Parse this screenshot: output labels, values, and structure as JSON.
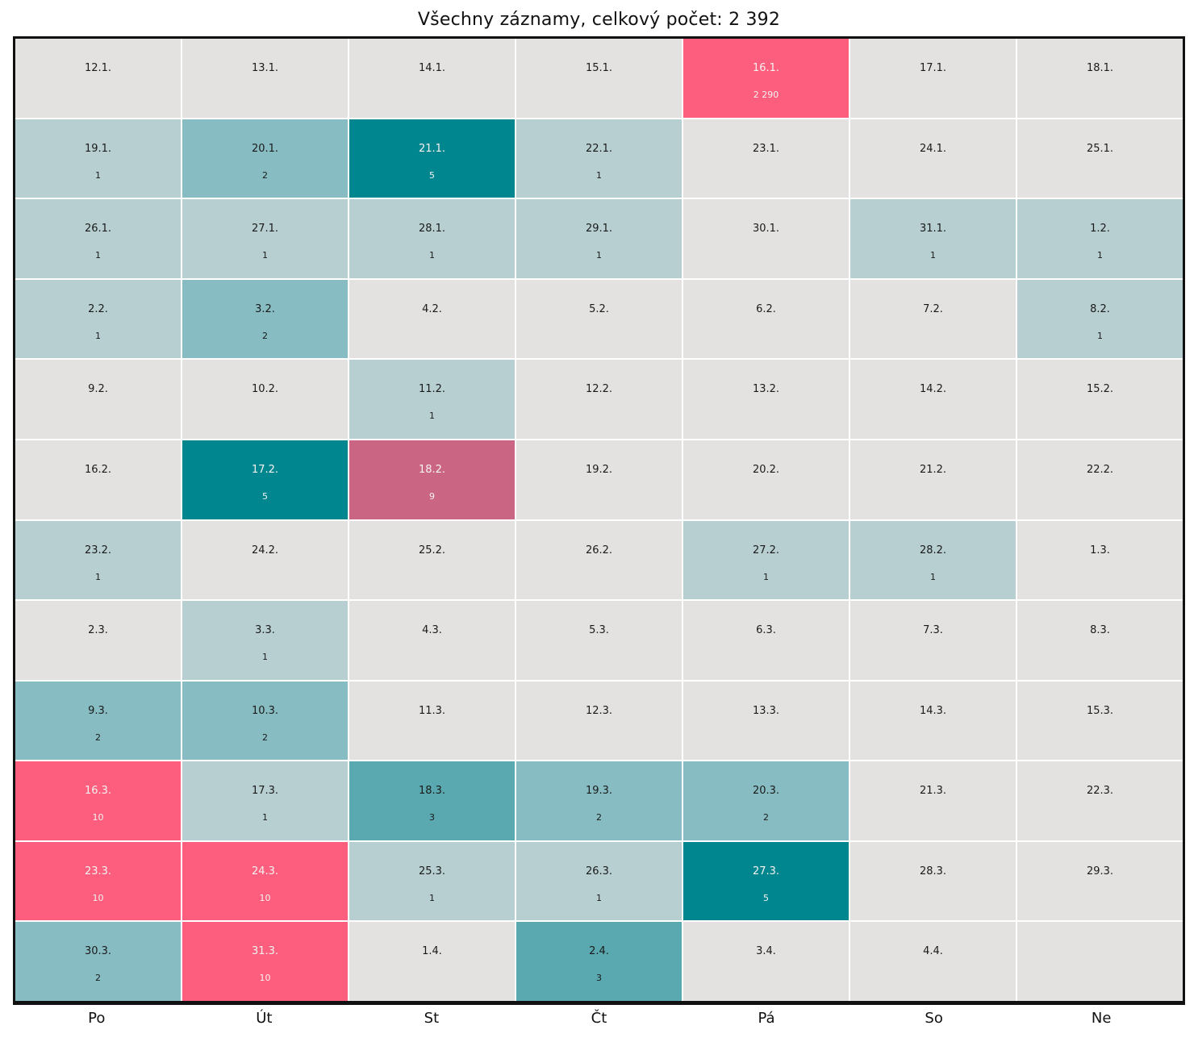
{
  "chart_data": {
    "type": "heatmap",
    "title": "Všechny záznamy, celkový počet: 2 392",
    "total_count_label": "2 392",
    "total_count": 2392,
    "x_labels": [
      "Po",
      "Út",
      "St",
      "Čt",
      "Pá",
      "So",
      "Ne"
    ],
    "layout": {
      "grid_line_color": "#ffffff",
      "border_color": "#111111",
      "legend": "none"
    },
    "color_scale": {
      "empty": "#e3e2e0",
      "1": "#b7cfd1",
      "2": "#87bdc2",
      "3": "#5aa9b0",
      "5": "#00868f",
      "9": "#cb6584",
      "10": "#fd5e7d",
      "2290": "#fd5e7d"
    },
    "light_text_counts": [
      5,
      9,
      10,
      2290
    ],
    "weeks": [
      [
        {
          "date": "12.1.",
          "count": null
        },
        {
          "date": "13.1.",
          "count": null
        },
        {
          "date": "14.1.",
          "count": null
        },
        {
          "date": "15.1.",
          "count": null
        },
        {
          "date": "16.1.",
          "count": 2290,
          "label": "2 290"
        },
        {
          "date": "17.1.",
          "count": null
        },
        {
          "date": "18.1.",
          "count": null
        }
      ],
      [
        {
          "date": "19.1.",
          "count": 1
        },
        {
          "date": "20.1.",
          "count": 2
        },
        {
          "date": "21.1.",
          "count": 5
        },
        {
          "date": "22.1.",
          "count": 1
        },
        {
          "date": "23.1.",
          "count": null
        },
        {
          "date": "24.1.",
          "count": null
        },
        {
          "date": "25.1.",
          "count": null
        }
      ],
      [
        {
          "date": "26.1.",
          "count": 1
        },
        {
          "date": "27.1.",
          "count": 1
        },
        {
          "date": "28.1.",
          "count": 1
        },
        {
          "date": "29.1.",
          "count": 1
        },
        {
          "date": "30.1.",
          "count": null
        },
        {
          "date": "31.1.",
          "count": 1
        },
        {
          "date": "1.2.",
          "count": 1
        }
      ],
      [
        {
          "date": "2.2.",
          "count": 1
        },
        {
          "date": "3.2.",
          "count": 2
        },
        {
          "date": "4.2.",
          "count": null
        },
        {
          "date": "5.2.",
          "count": null
        },
        {
          "date": "6.2.",
          "count": null
        },
        {
          "date": "7.2.",
          "count": null
        },
        {
          "date": "8.2.",
          "count": 1
        }
      ],
      [
        {
          "date": "9.2.",
          "count": null
        },
        {
          "date": "10.2.",
          "count": null
        },
        {
          "date": "11.2.",
          "count": 1
        },
        {
          "date": "12.2.",
          "count": null
        },
        {
          "date": "13.2.",
          "count": null
        },
        {
          "date": "14.2.",
          "count": null
        },
        {
          "date": "15.2.",
          "count": null
        }
      ],
      [
        {
          "date": "16.2.",
          "count": null
        },
        {
          "date": "17.2.",
          "count": 5
        },
        {
          "date": "18.2.",
          "count": 9
        },
        {
          "date": "19.2.",
          "count": null
        },
        {
          "date": "20.2.",
          "count": null
        },
        {
          "date": "21.2.",
          "count": null
        },
        {
          "date": "22.2.",
          "count": null
        }
      ],
      [
        {
          "date": "23.2.",
          "count": 1
        },
        {
          "date": "24.2.",
          "count": null
        },
        {
          "date": "25.2.",
          "count": null
        },
        {
          "date": "26.2.",
          "count": null
        },
        {
          "date": "27.2.",
          "count": 1
        },
        {
          "date": "28.2.",
          "count": 1
        },
        {
          "date": "1.3.",
          "count": null
        }
      ],
      [
        {
          "date": "2.3.",
          "count": null
        },
        {
          "date": "3.3.",
          "count": 1
        },
        {
          "date": "4.3.",
          "count": null
        },
        {
          "date": "5.3.",
          "count": null
        },
        {
          "date": "6.3.",
          "count": null
        },
        {
          "date": "7.3.",
          "count": null
        },
        {
          "date": "8.3.",
          "count": null
        }
      ],
      [
        {
          "date": "9.3.",
          "count": 2
        },
        {
          "date": "10.3.",
          "count": 2
        },
        {
          "date": "11.3.",
          "count": null
        },
        {
          "date": "12.3.",
          "count": null
        },
        {
          "date": "13.3.",
          "count": null
        },
        {
          "date": "14.3.",
          "count": null
        },
        {
          "date": "15.3.",
          "count": null
        }
      ],
      [
        {
          "date": "16.3.",
          "count": 10
        },
        {
          "date": "17.3.",
          "count": 1
        },
        {
          "date": "18.3.",
          "count": 3
        },
        {
          "date": "19.3.",
          "count": 2
        },
        {
          "date": "20.3.",
          "count": 2
        },
        {
          "date": "21.3.",
          "count": null
        },
        {
          "date": "22.3.",
          "count": null
        }
      ],
      [
        {
          "date": "23.3.",
          "count": 10
        },
        {
          "date": "24.3.",
          "count": 10
        },
        {
          "date": "25.3.",
          "count": 1
        },
        {
          "date": "26.3.",
          "count": 1
        },
        {
          "date": "27.3.",
          "count": 5
        },
        {
          "date": "28.3.",
          "count": null
        },
        {
          "date": "29.3.",
          "count": null
        }
      ],
      [
        {
          "date": "30.3.",
          "count": 2
        },
        {
          "date": "31.3.",
          "count": 10
        },
        {
          "date": "1.4.",
          "count": null
        },
        {
          "date": "2.4.",
          "count": 3
        },
        {
          "date": "3.4.",
          "count": null
        },
        {
          "date": "4.4.",
          "count": null
        },
        {
          "date": "",
          "count": null
        }
      ]
    ]
  }
}
